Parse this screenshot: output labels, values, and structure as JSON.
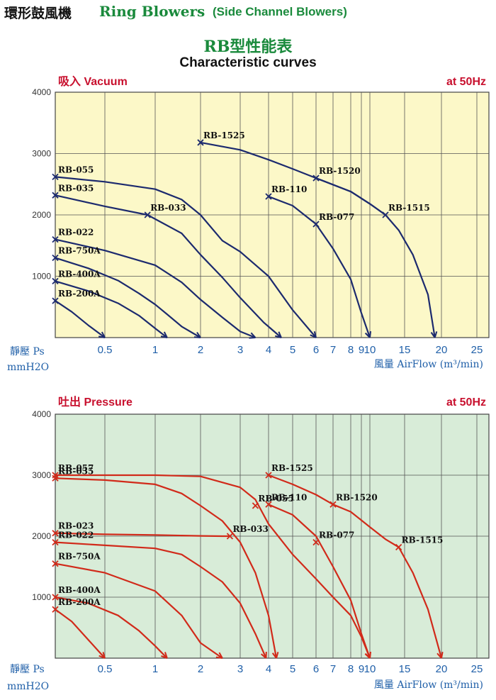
{
  "header": {
    "title_cn": "環形鼓風機",
    "title_en": "Ring Blowers",
    "subtitle_en": "(Side Channel Blowers)"
  },
  "chart_title_cn": "RB型性能表",
  "chart_title_en": "Characteristic curves",
  "chart_data": [
    {
      "type": "line",
      "panel_label": "吸入 Vacuum",
      "frequency_label": "at 50Hz",
      "ylabel_cn": "靜壓 Ps",
      "ylabel_unit": "mmH2O",
      "xlabel": "風量 AirFlow (m³/min)",
      "y_ticks": [
        "1000",
        "2000",
        "3000",
        "4000"
      ],
      "x_tick_labels": [
        "0.5",
        "1",
        "2",
        "3",
        "4",
        "5",
        "6",
        "7",
        "8",
        "9",
        "10",
        "15",
        "20",
        "25"
      ],
      "ylim": [
        0,
        4000
      ],
      "xlim": [
        0.2,
        25
      ],
      "x_scale": "log",
      "grid": true,
      "line_color": "#1c2a6e",
      "bg_color": "#fcf8c8",
      "series": [
        {
          "name": "RB-1525",
          "x": [
            2,
            3,
            4,
            5,
            6,
            8,
            10,
            12
          ],
          "y": [
            3180,
            3060,
            2900,
            2750,
            2600,
            2380,
            2180,
            2000
          ]
        },
        {
          "name": "RB-1520",
          "x": [
            6,
            8,
            10,
            12
          ],
          "y": [
            2600,
            2380,
            2180,
            2000
          ]
        },
        {
          "name": "RB-1515",
          "x": [
            12,
            14,
            16,
            18,
            19
          ],
          "y": [
            2000,
            1750,
            1350,
            700,
            0
          ]
        },
        {
          "name": "RB-055",
          "x": [
            0.2,
            0.5,
            1,
            1.5,
            2,
            2.5,
            3,
            4,
            5,
            6
          ],
          "y": [
            2620,
            2540,
            2420,
            2250,
            2000,
            1580,
            1400,
            1000,
            450,
            0
          ]
        },
        {
          "name": "RB-035",
          "x": [
            0.2,
            0.5,
            0.9,
            1.5,
            2,
            2.5,
            3,
            3.8,
            4.5
          ],
          "y": [
            2320,
            2140,
            2000,
            1700,
            1350,
            980,
            650,
            250,
            0
          ]
        },
        {
          "name": "RB-033",
          "x": [
            0.9
          ],
          "y": [
            2000
          ]
        },
        {
          "name": "RB-110",
          "x": [
            4,
            5,
            6,
            7,
            8,
            9,
            10
          ],
          "y": [
            2300,
            2150,
            1850,
            1450,
            950,
            400,
            0
          ]
        },
        {
          "name": "RB-077",
          "x": [
            6
          ],
          "y": [
            1850
          ]
        },
        {
          "name": "RB-022",
          "x": [
            0.2,
            0.5,
            1,
            1.5,
            2,
            2.5,
            3,
            3.5
          ],
          "y": [
            1600,
            1420,
            1180,
            900,
            620,
            330,
            100,
            0
          ]
        },
        {
          "name": "RB-750A",
          "x": [
            0.2,
            0.4,
            0.6,
            0.8,
            1,
            1.2,
            1.5,
            2
          ],
          "y": [
            1300,
            1130,
            930,
            720,
            540,
            380,
            180,
            0
          ]
        },
        {
          "name": "RB-400A",
          "x": [
            0.2,
            0.4,
            0.6,
            0.8,
            1,
            1.2
          ],
          "y": [
            920,
            760,
            560,
            360,
            150,
            0
          ]
        },
        {
          "name": "RB-200A",
          "x": [
            0.2,
            0.3,
            0.4,
            0.5
          ],
          "y": [
            600,
            420,
            200,
            0
          ]
        }
      ]
    },
    {
      "type": "line",
      "panel_label": "吐出 Pressure",
      "frequency_label": "at 50Hz",
      "ylabel_cn": "靜壓 Ps",
      "ylabel_unit": "mmH2O",
      "xlabel": "風量 AirFlow (m³/min)",
      "y_ticks": [
        "1000",
        "2000",
        "3000",
        "4000"
      ],
      "x_tick_labels": [
        "0.5",
        "1",
        "2",
        "3",
        "4",
        "5",
        "6",
        "7",
        "8",
        "9",
        "10",
        "15",
        "20",
        "25"
      ],
      "ylim": [
        0,
        4000
      ],
      "xlim": [
        0.2,
        25
      ],
      "x_scale": "log",
      "grid": true,
      "line_color": "#d12a1a",
      "bg_color": "#d8ecd8",
      "series": [
        {
          "name": "RB-1525",
          "x": [
            4,
            5,
            6,
            7,
            8,
            10,
            12,
            14
          ],
          "y": [
            3000,
            2850,
            2680,
            2520,
            2400,
            2150,
            1950,
            1820
          ]
        },
        {
          "name": "RB-1520",
          "x": [
            7
          ],
          "y": [
            2520
          ]
        },
        {
          "name": "RB-1515",
          "x": [
            14,
            16,
            18,
            20
          ],
          "y": [
            1820,
            1400,
            800,
            0
          ]
        },
        {
          "name": "RB-057",
          "x": [
            0.2,
            1,
            2,
            3,
            3.5,
            4,
            5,
            6,
            7,
            8,
            9,
            10
          ],
          "y": [
            3000,
            3000,
            2980,
            2800,
            2600,
            2200,
            1700,
            1300,
            1000,
            700,
            350,
            0
          ]
        },
        {
          "name": "RB-035",
          "x": [
            0.2,
            0.5,
            1,
            1.5,
            2,
            2.5,
            3,
            3.5,
            4,
            4.3
          ],
          "y": [
            2950,
            2920,
            2850,
            2700,
            2500,
            2250,
            1900,
            1400,
            700,
            0
          ]
        },
        {
          "name": "RB-055",
          "x": [
            3.5
          ],
          "y": [
            2500
          ]
        },
        {
          "name": "RB-110",
          "x": [
            4,
            5,
            6,
            7,
            8,
            9,
            10
          ],
          "y": [
            2520,
            2350,
            2000,
            1500,
            950,
            400,
            0
          ]
        },
        {
          "name": "RB-077",
          "x": [
            6
          ],
          "y": [
            1900
          ]
        },
        {
          "name": "RB-023",
          "x": [
            0.2,
            0.5,
            1,
            1.5,
            2,
            2.5,
            2.7
          ],
          "y": [
            2050,
            2030,
            2020,
            2010,
            2005,
            2000,
            2000
          ]
        },
        {
          "name": "RB-033",
          "x": [
            2.7
          ],
          "y": [
            2000
          ]
        },
        {
          "name": "RB-022",
          "x": [
            0.2,
            0.5,
            1,
            1.5,
            2,
            2.5,
            3,
            3.5,
            3.9
          ],
          "y": [
            1900,
            1850,
            1800,
            1700,
            1500,
            1250,
            900,
            400,
            0
          ]
        },
        {
          "name": "RB-750A",
          "x": [
            0.2,
            0.5,
            1,
            1.5,
            2,
            2.5
          ],
          "y": [
            1550,
            1400,
            1100,
            700,
            250,
            0
          ]
        },
        {
          "name": "RB-400A",
          "x": [
            0.2,
            0.4,
            0.6,
            0.8,
            1,
            1.2
          ],
          "y": [
            1000,
            900,
            700,
            450,
            200,
            0
          ]
        },
        {
          "name": "RB-200A",
          "x": [
            0.2,
            0.3,
            0.4,
            0.5
          ],
          "y": [
            800,
            600,
            300,
            0
          ]
        }
      ]
    }
  ]
}
